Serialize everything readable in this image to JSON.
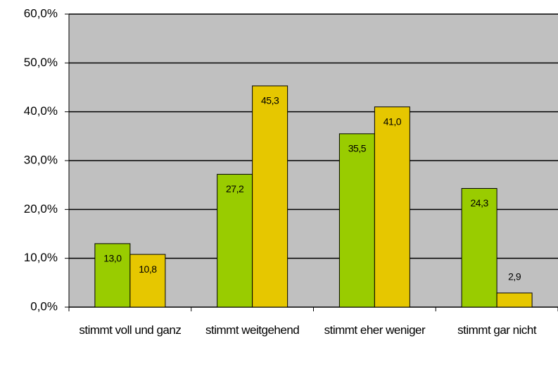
{
  "chart_data": {
    "type": "bar",
    "categories": [
      "stimmt voll und ganz",
      "stimmt weitgehend",
      "stimmt eher weniger",
      "stimmt gar nicht"
    ],
    "series": [
      {
        "color": "#99cc00",
        "values": [
          13.0,
          27.2,
          35.5,
          24.3
        ],
        "value_labels": [
          "13,0",
          "27,2",
          "35,5",
          "24,3"
        ]
      },
      {
        "color": "#e6c700",
        "values": [
          10.8,
          45.3,
          41.0,
          2.9
        ],
        "value_labels": [
          "10,8",
          "45,3",
          "41,0",
          "2,9"
        ]
      }
    ],
    "ylim": [
      0,
      60
    ],
    "yticks": [
      {
        "value": 0,
        "label": "0,0%"
      },
      {
        "value": 10,
        "label": "10,0%"
      },
      {
        "value": 20,
        "label": "20,0%"
      },
      {
        "value": 30,
        "label": "30,0%"
      },
      {
        "value": 40,
        "label": "40,0%"
      },
      {
        "value": 50,
        "label": "50,0%"
      },
      {
        "value": 60,
        "label": "60,0%"
      }
    ],
    "grid": true,
    "plot_background": "#c0c0c0"
  }
}
